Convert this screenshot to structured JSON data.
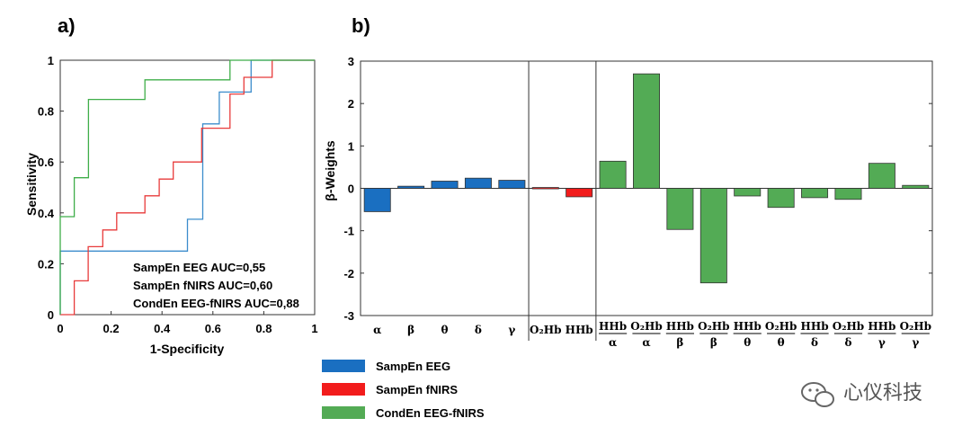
{
  "chart_data": [
    {
      "panel": "a)",
      "type": "line",
      "xlabel": "1-Specificity",
      "ylabel": "Sensitivity",
      "xlim": [
        0,
        1
      ],
      "ylim": [
        0,
        1
      ],
      "x_ticks": [
        "0",
        "0.2",
        "0.4",
        "0.6",
        "0.8",
        "1"
      ],
      "y_ticks": [
        "0",
        "0.2",
        "0.4",
        "0.6",
        "0.8",
        "1"
      ],
      "grid": false,
      "annotations": [
        "SampEn EEG AUC=0,55",
        "SampEn fNIRS AUC=0,60",
        "CondEn EEG-fNIRS AUC=0,88"
      ],
      "series": [
        {
          "name": "SampEn EEG",
          "color": "#3c8dcc",
          "points": [
            [
              0,
              0
            ],
            [
              0,
              0.25
            ],
            [
              0.5,
              0.25
            ],
            [
              0.5,
              0.375
            ],
            [
              0.56,
              0.375
            ],
            [
              0.56,
              0.75
            ],
            [
              0.625,
              0.75
            ],
            [
              0.625,
              0.875
            ],
            [
              0.75,
              0.875
            ],
            [
              0.75,
              1
            ],
            [
              1,
              1
            ]
          ]
        },
        {
          "name": "SampEn fNIRS",
          "color": "#e83b3b",
          "points": [
            [
              0,
              0
            ],
            [
              0.055,
              0
            ],
            [
              0.055,
              0.133
            ],
            [
              0.11,
              0.133
            ],
            [
              0.11,
              0.267
            ],
            [
              0.167,
              0.267
            ],
            [
              0.167,
              0.333
            ],
            [
              0.222,
              0.333
            ],
            [
              0.222,
              0.4
            ],
            [
              0.333,
              0.4
            ],
            [
              0.333,
              0.467
            ],
            [
              0.389,
              0.467
            ],
            [
              0.389,
              0.533
            ],
            [
              0.444,
              0.533
            ],
            [
              0.444,
              0.6
            ],
            [
              0.556,
              0.6
            ],
            [
              0.556,
              0.733
            ],
            [
              0.667,
              0.733
            ],
            [
              0.667,
              0.867
            ],
            [
              0.722,
              0.867
            ],
            [
              0.722,
              0.933
            ],
            [
              0.833,
              0.933
            ],
            [
              0.833,
              1
            ],
            [
              1,
              1
            ]
          ]
        },
        {
          "name": "CondEn EEG-fNIRS",
          "color": "#3fae49",
          "points": [
            [
              0,
              0
            ],
            [
              0,
              0.385
            ],
            [
              0.055,
              0.385
            ],
            [
              0.055,
              0.538
            ],
            [
              0.111,
              0.538
            ],
            [
              0.111,
              0.846
            ],
            [
              0.333,
              0.846
            ],
            [
              0.333,
              0.923
            ],
            [
              0.667,
              0.923
            ],
            [
              0.667,
              1
            ],
            [
              1,
              1
            ]
          ]
        }
      ]
    },
    {
      "panel": "b)",
      "type": "bar",
      "ylabel": "β-Weights",
      "ylim": [
        -3,
        3
      ],
      "y_ticks": [
        "3",
        "2",
        "1",
        "0",
        "-1",
        "-2",
        "-3"
      ],
      "categories": [
        {
          "label": "α",
          "group": "SampEn EEG"
        },
        {
          "label": "β",
          "group": "SampEn EEG"
        },
        {
          "label": "θ",
          "group": "SampEn EEG"
        },
        {
          "label": "δ",
          "group": "SampEn EEG"
        },
        {
          "label": "γ",
          "group": "SampEn EEG"
        },
        {
          "label": "O₂Hb",
          "group": "SampEn fNIRS"
        },
        {
          "label": "HHb",
          "group": "SampEn fNIRS"
        },
        {
          "top": "HHb",
          "bottom": "α",
          "group": "CondEn EEG-fNIRS"
        },
        {
          "top": "O₂Hb",
          "bottom": "α",
          "group": "CondEn EEG-fNIRS"
        },
        {
          "top": "HHb",
          "bottom": "β",
          "group": "CondEn EEG-fNIRS"
        },
        {
          "top": "O₂Hb",
          "bottom": "β",
          "group": "CondEn EEG-fNIRS"
        },
        {
          "top": "HHb",
          "bottom": "θ",
          "group": "CondEn EEG-fNIRS"
        },
        {
          "top": "O₂Hb",
          "bottom": "θ",
          "group": "CondEn EEG-fNIRS"
        },
        {
          "top": "HHb",
          "bottom": "δ",
          "group": "CondEn EEG-fNIRS"
        },
        {
          "top": "O₂Hb",
          "bottom": "δ",
          "group": "CondEn EEG-fNIRS"
        },
        {
          "top": "HHb",
          "bottom": "γ",
          "group": "CondEn EEG-fNIRS"
        },
        {
          "top": "O₂Hb",
          "bottom": "γ",
          "group": "CondEn EEG-fNIRS"
        }
      ],
      "values": [
        -0.55,
        0.05,
        0.17,
        0.24,
        0.19,
        0.02,
        -0.2,
        0.64,
        2.7,
        -0.97,
        -2.23,
        -0.18,
        -0.45,
        -0.22,
        -0.26,
        0.59,
        0.07
      ],
      "legend": [
        {
          "name": "SampEn EEG",
          "color": "#1a6fc1"
        },
        {
          "name": "SampEn fNIRS",
          "color": "#f21c1c"
        },
        {
          "name": "CondEn EEG-fNIRS",
          "color": "#53ab55"
        }
      ],
      "legend_position": "bottom-left"
    }
  ],
  "watermark": "心仪科技"
}
